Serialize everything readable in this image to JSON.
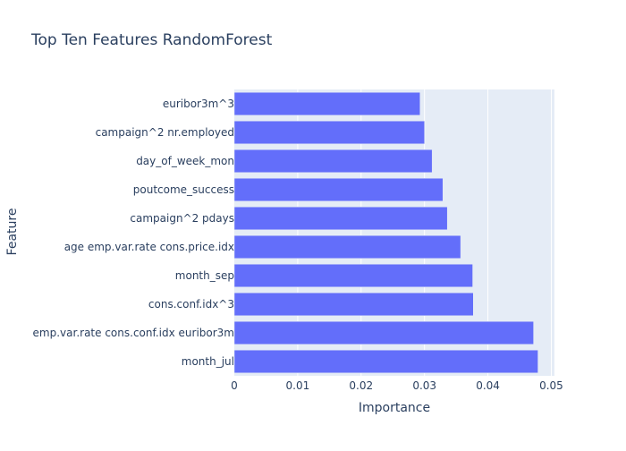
{
  "chart_data": {
    "type": "bar",
    "orientation": "horizontal",
    "title": "Top Ten Features RandomForest",
    "xlabel": "Importance",
    "ylabel": "Feature",
    "xlim": [
      0,
      0.0505
    ],
    "x_ticks": [
      0,
      0.01,
      0.02,
      0.03,
      0.04,
      0.05
    ],
    "x_tick_labels": [
      "0",
      "0.01",
      "0.02",
      "0.03",
      "0.04",
      "0.05"
    ],
    "grid": true,
    "legend": "none",
    "colors": {
      "bar": "#636efa",
      "plot_bg": "#e5ecf6",
      "grid": "#ffffff",
      "text": "#2a3f5f"
    },
    "categories": [
      "euribor3m^3",
      "campaign^2 nr.employed",
      "day_of_week_mon",
      "poutcome_success",
      "campaign^2 pdays",
      "age emp.var.rate cons.price.idx",
      "month_sep",
      "cons.conf.idx^3",
      "emp.var.rate cons.conf.idx euribor3m",
      "month_jul"
    ],
    "values": [
      0.0293,
      0.03,
      0.0312,
      0.0329,
      0.0336,
      0.0357,
      0.0376,
      0.0377,
      0.0472,
      0.0479
    ]
  }
}
